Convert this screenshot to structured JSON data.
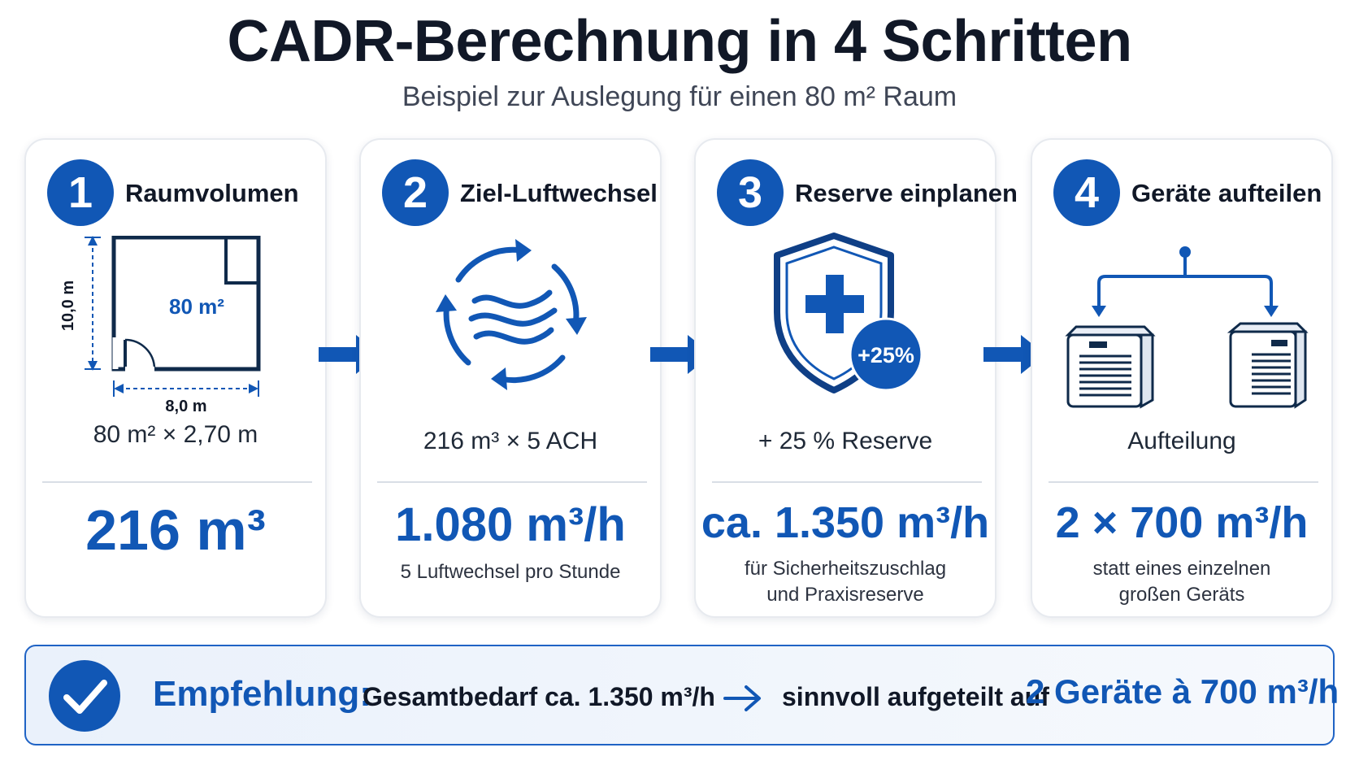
{
  "header": {
    "title": "CADR-Berechnung in 4 Schritten",
    "subtitle": "Beispiel zur Auslegung für einen 80 m² Raum"
  },
  "colors": {
    "accent": "#1157b5",
    "text": "#111827",
    "card_border": "#e7eaef",
    "reco_border": "#1f63c5"
  },
  "steps": [
    {
      "number": "1",
      "title": "Raumvolumen",
      "icon": "floor-plan-icon",
      "illustration": {
        "height_label": "10,0 m",
        "width_label": "8,0 m",
        "area_label": "80 m²"
      },
      "formula": "80 m² × 2,70 m",
      "result": "216 m³",
      "note": ""
    },
    {
      "number": "2",
      "title": "Ziel-Luftwechsel",
      "icon": "air-circulation-icon",
      "formula": "216 m³ × 5 ACH",
      "result": "1.080 m³/h",
      "note": "5 Luftwechsel pro Stunde"
    },
    {
      "number": "3",
      "title": "Reserve einplanen",
      "icon": "shield-plus-icon",
      "illustration": {
        "badge_label": "+25%"
      },
      "formula": "+ 25 % Reserve",
      "result": "ca. 1.350 m³/h",
      "note_line1": "für Sicherheitszuschlag",
      "note_line2": "und Praxisreserve"
    },
    {
      "number": "4",
      "title": "Geräte aufteilen",
      "icon": "air-purifier-split-icon",
      "formula": "Aufteilung",
      "result": "2 × 700 m³/h",
      "note_line1": "statt eines einzelnen",
      "note_line2": "großen Geräts"
    }
  ],
  "recommendation": {
    "label": "Empfehlung:",
    "total": "Gesamtbedarf ca. 1.350 m³/h",
    "middle": "sinnvoll aufgeteilt auf",
    "final": "2 Geräte à 700 m³/h"
  }
}
